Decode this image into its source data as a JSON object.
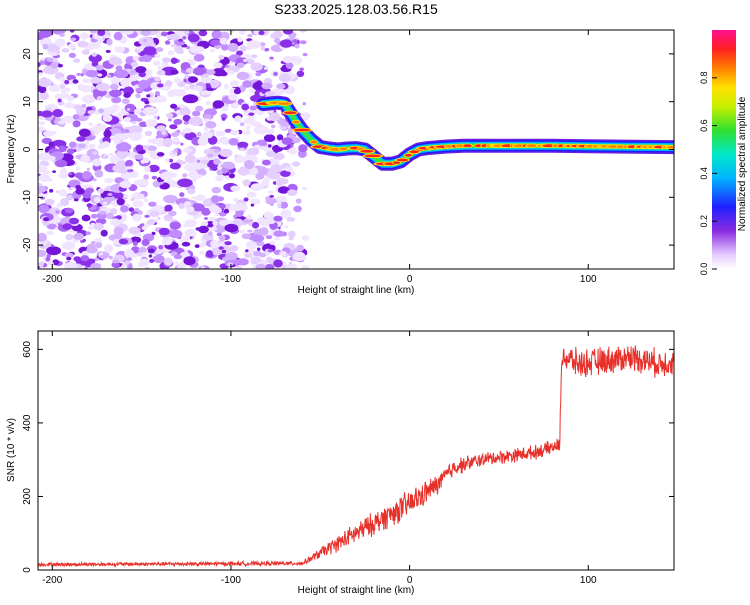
{
  "title": "S233.2025.128.03.56.R15",
  "chart_data": [
    {
      "type": "heatmap",
      "xlabel": "Height of straight line (km)",
      "ylabel": "Frequency (Hz)",
      "xlim": [
        -208,
        148
      ],
      "ylim": [
        -25,
        25
      ],
      "xticks": [
        -200,
        -100,
        0,
        100
      ],
      "yticks": [
        -20,
        -10,
        0,
        10,
        20
      ],
      "noise_region_x": [
        -208,
        -58
      ],
      "signal_track": {
        "x": [
          -82,
          -74,
          -70,
          -64,
          -60,
          -55,
          -50,
          -45,
          -40,
          -35,
          -30,
          -25,
          -20,
          -15,
          -10,
          -5,
          0,
          5,
          10,
          20,
          30,
          40,
          60,
          80,
          100,
          120,
          148
        ],
        "y": [
          9.5,
          9.8,
          9.6,
          6,
          4,
          2,
          0.5,
          0.2,
          0,
          0.2,
          0.3,
          0,
          -1.5,
          -3,
          -3,
          -2.5,
          -1,
          0,
          0.3,
          0.6,
          0.8,
          0.8,
          0.8,
          0.8,
          0.7,
          0.6,
          0.5
        ]
      },
      "colorbar": {
        "label": "Normalized spectral amplitude",
        "ticks": [
          "0.0",
          "0.2",
          "0.4",
          "0.6",
          "0.8"
        ],
        "range": [
          0,
          1
        ]
      }
    },
    {
      "type": "line",
      "xlabel": "Height of straight line (km)",
      "ylabel": "SNR (10 * v/v)",
      "xlim": [
        -208,
        148
      ],
      "ylim": [
        0,
        650
      ],
      "xticks": [
        -200,
        -100,
        0,
        100
      ],
      "yticks": [
        0,
        200,
        400,
        600
      ],
      "color": "#e8302a",
      "series_profile": {
        "x": [
          -208,
          -60,
          -45,
          -30,
          -15,
          0,
          15,
          25,
          40,
          55,
          70,
          84,
          85,
          86,
          95,
          110,
          125,
          140,
          148
        ],
        "mean": [
          15,
          18,
          60,
          100,
          140,
          180,
          230,
          280,
          300,
          310,
          320,
          340,
          600,
          580,
          560,
          570,
          580,
          560,
          570
        ],
        "noise": [
          5,
          6,
          20,
          30,
          35,
          40,
          30,
          25,
          20,
          20,
          20,
          20,
          40,
          40,
          40,
          40,
          40,
          40,
          40
        ]
      }
    }
  ]
}
